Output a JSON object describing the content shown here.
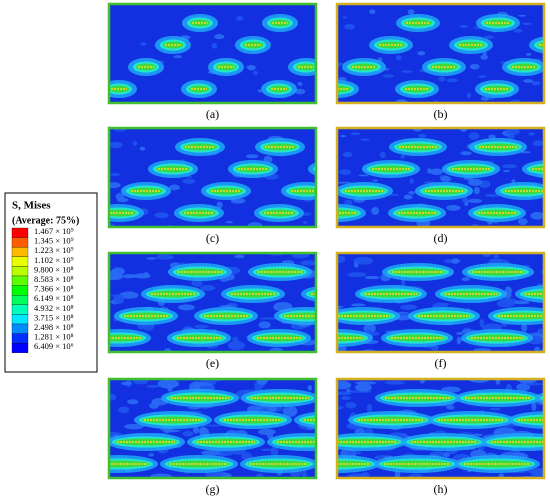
{
  "legend": {
    "title": "S, Mises",
    "subtitle": "(Average: 75%)",
    "entries": [
      {
        "label": "1.467 × 10⁹",
        "color": "#ff0000"
      },
      {
        "label": "1.345 × 10⁹",
        "color": "#ff5d00"
      },
      {
        "label": "1.223 × 10⁹",
        "color": "#ffb900"
      },
      {
        "label": "1.102 × 10⁹",
        "color": "#e8ff00"
      },
      {
        "label": "9.800 × 10⁸",
        "color": "#b9ff00"
      },
      {
        "label": "8.583 × 10⁸",
        "color": "#5dff00"
      },
      {
        "label": "7.366 × 10⁸",
        "color": "#00ff00"
      },
      {
        "label": "6.149 × 10⁸",
        "color": "#00ff5d"
      },
      {
        "label": "4.932 × 10⁸",
        "color": "#00ffb9"
      },
      {
        "label": "3.715 × 10⁸",
        "color": "#00e8ff"
      },
      {
        "label": "2.498 × 10⁸",
        "color": "#008bff"
      },
      {
        "label": "1.281 × 10⁸",
        "color": "#002eff"
      },
      {
        "label": "6.409 × 10⁶",
        "color": "#0000ff"
      }
    ]
  },
  "panels": [
    {
      "label": "(a)"
    },
    {
      "label": "(b)"
    },
    {
      "label": "(c)"
    },
    {
      "label": "(d)"
    },
    {
      "label": "(e)"
    },
    {
      "label": "(f)"
    },
    {
      "label": "(g)"
    },
    {
      "label": "(h)"
    }
  ]
}
